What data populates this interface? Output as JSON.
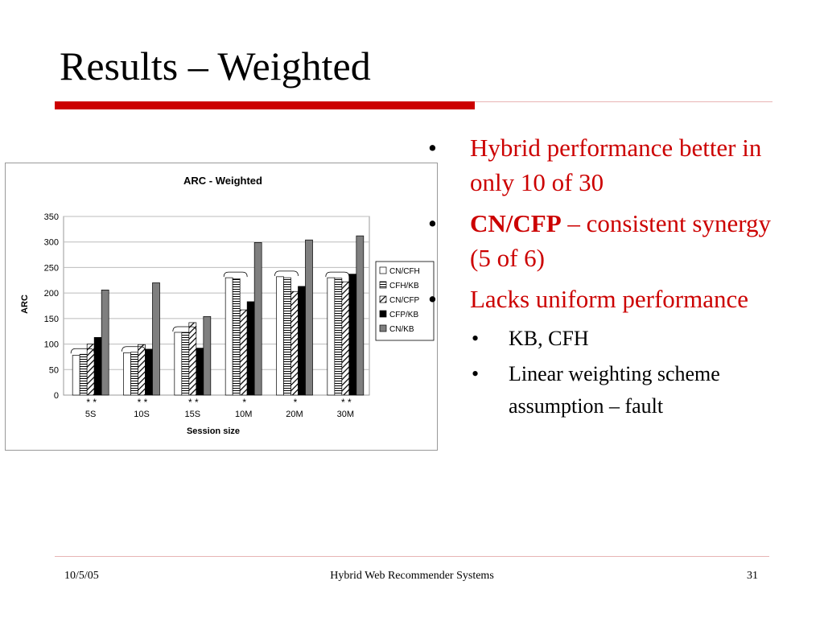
{
  "slide": {
    "title": "Results – Weighted",
    "footer": {
      "date": "10/5/05",
      "center": "Hybrid Web Recommender Systems",
      "page": "31"
    }
  },
  "bullets": [
    {
      "text": "Hybrid performance better in only 10 of 30"
    },
    {
      "strong": "CN/CFP",
      "rest": " – consistent synergy (5 of 6)"
    },
    {
      "text": "Lacks uniform performance",
      "sub": [
        "KB, CFH",
        "Linear weighting scheme assumption – fault"
      ]
    }
  ],
  "chart_data": {
    "type": "bar",
    "title": "ARC - Weighted",
    "xlabel": "Session size",
    "ylabel": "ARC",
    "ylim": [
      0,
      350
    ],
    "yticks": [
      0,
      50,
      100,
      150,
      200,
      250,
      300,
      350
    ],
    "categories": [
      "5S",
      "10S",
      "15S",
      "10M",
      "20M",
      "30M"
    ],
    "series": [
      {
        "name": "CN/CFH",
        "pattern": "white",
        "values": [
          78,
          83,
          123,
          230,
          232,
          230
        ]
      },
      {
        "name": "CFH/KB",
        "pattern": "hlines",
        "values": [
          80,
          84,
          123,
          228,
          230,
          229
        ]
      },
      {
        "name": "CN/CFP",
        "pattern": "diag",
        "values": [
          100,
          99,
          142,
          167,
          203,
          222
        ]
      },
      {
        "name": "CFP/KB",
        "pattern": "black",
        "values": [
          113,
          90,
          92,
          183,
          213,
          237
        ]
      },
      {
        "name": "CN/KB",
        "pattern": "gray",
        "values": [
          206,
          220,
          154,
          299,
          304,
          312
        ]
      }
    ],
    "asterisks": [
      "* *",
      "* *",
      "* *",
      "*",
      "*",
      "* *"
    ],
    "grid": true,
    "legend": "right"
  }
}
